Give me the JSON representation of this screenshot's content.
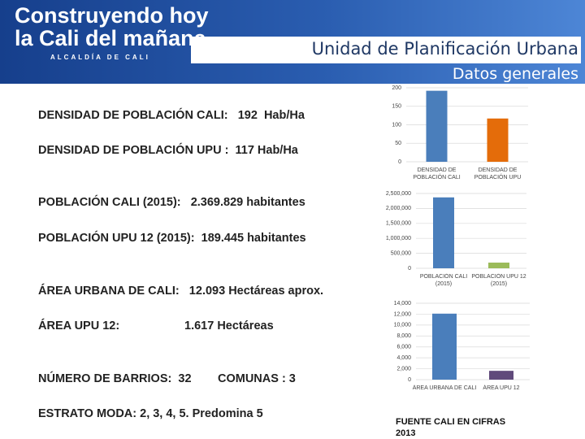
{
  "header": {
    "logo_line1": "Construyendo hoy",
    "logo_line2": "la Cali del mañana",
    "logo_tagline": "ALCALDÍA DE CALI",
    "title": "Unidad de Planificación Urbana",
    "subtitle": "Datos generales"
  },
  "facts": [
    "DENSIDAD DE POBLACIÓN CALI:   192  Hab/Ha",
    "DENSIDAD DE POBLACIÓN UPU :  117 Hab/Ha",
    "POBLACIÓN CALI (2015):   2.369.829 habitantes",
    "POBLACIÓN UPU 12 (2015):  189.445 habitantes",
    "ÁREA URBANA DE CALI:   12.093 Hectáreas aprox.",
    "ÁREA UPU 12:",
    "1.617 Hectáreas",
    "NÚMERO DE BARRIOS:  32",
    "COMUNAS : 3",
    "ESTRATO MODA: 2, 3, 4, 5. Predomina 5"
  ],
  "source": [
    "FUENTE CALI EN CIFRAS",
    "2013"
  ],
  "chart_data": [
    {
      "type": "bar",
      "categories": [
        "DENSIDAD DE POBLACIÓN CALI",
        "DENSIDAD DE POBLACIÓN UPU"
      ],
      "values": [
        192,
        117
      ],
      "colors": [
        "#4a7ebb",
        "#e46c0a"
      ],
      "ylim": [
        0,
        200
      ],
      "yticks": [
        0,
        50,
        100,
        150,
        200
      ],
      "grid": true
    },
    {
      "type": "bar",
      "categories": [
        "POBLACIÓN CALI (2015)",
        "POBLACIÓN UPU 12 (2015)"
      ],
      "values": [
        2369829,
        189445
      ],
      "colors": [
        "#4a7ebb",
        "#9bbb59"
      ],
      "ylim": [
        0,
        2500000
      ],
      "yticks": [
        0,
        {
          "value": 500000,
          "label": "500,000"
        },
        {
          "value": 1000000,
          "label": "1,000,000"
        },
        {
          "value": 1500000,
          "label": "1,500,000"
        },
        {
          "value": 2000000,
          "label": "2,000,000"
        },
        {
          "value": 2500000,
          "label": "2,500,000"
        }
      ],
      "grid": true
    },
    {
      "type": "bar",
      "categories": [
        "ÁREA URBANA DE CALI",
        "ÁREA UPU 12"
      ],
      "values": [
        12093,
        1617
      ],
      "colors": [
        "#4a7ebb",
        "#604a7b"
      ],
      "ylim": [
        0,
        14000
      ],
      "yticks": [
        0,
        {
          "value": 2000,
          "label": "2,000"
        },
        {
          "value": 4000,
          "label": "4,000"
        },
        {
          "value": 6000,
          "label": "6,000"
        },
        {
          "value": 8000,
          "label": "8,000"
        },
        {
          "value": 10000,
          "label": "10,000"
        },
        {
          "value": 12000,
          "label": "12,000"
        },
        {
          "value": 14000,
          "label": "14,000"
        }
      ],
      "grid": true
    }
  ]
}
